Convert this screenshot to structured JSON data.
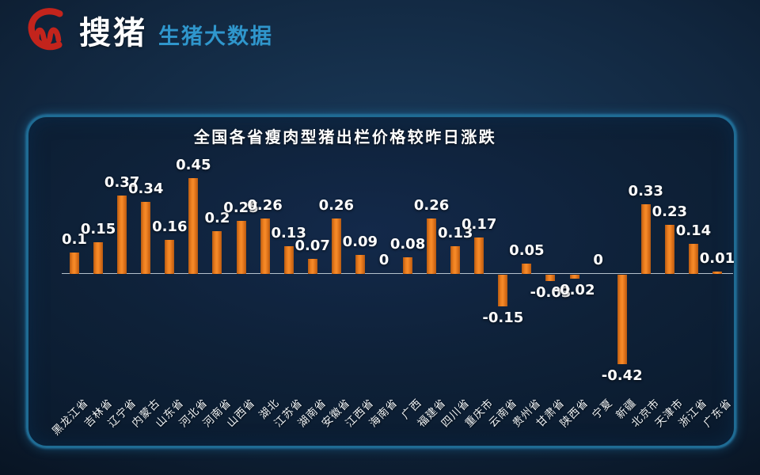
{
  "logo": {
    "brand": "搜猪",
    "subtitle": "生猪大数据",
    "icon": "pig-brush-icon",
    "brand_color": "#ffffff",
    "subtitle_color": "#2f96cc",
    "icon_color": "#c3241c"
  },
  "chart_data": {
    "type": "bar",
    "title": "全国各省瘦肉型猪出栏价格较昨日涨跌",
    "categories": [
      "黑龙江省",
      "吉林省",
      "辽宁省",
      "内蒙古",
      "山东省",
      "河北省",
      "河南省",
      "山西省",
      "湖北",
      "江苏省",
      "湖南省",
      "安徽省",
      "江西省",
      "海南省",
      "广西",
      "福建省",
      "四川省",
      "重庆市",
      "云南省",
      "贵州省",
      "甘肃省",
      "陕西省",
      "宁夏",
      "新疆",
      "北京市",
      "天津市",
      "浙江省",
      "广东省"
    ],
    "values": [
      0.1,
      0.15,
      0.37,
      0.34,
      0.16,
      0.45,
      0.2,
      0.25,
      0.26,
      0.13,
      0.07,
      0.26,
      0.09,
      0,
      0.08,
      0.26,
      0.13,
      0.17,
      -0.15,
      0.05,
      -0.03,
      -0.02,
      0,
      -0.42,
      0.33,
      0.23,
      0.14,
      0.01
    ],
    "xlabel": "",
    "ylabel": "",
    "ylim": [
      -0.5,
      0.5
    ],
    "grid": false,
    "legend": "none",
    "value_labels_shown": true,
    "bar_color": "#ee7d1e",
    "value_label_color": "#ffffff",
    "tick_label_color": "#eef3f7",
    "axis_line_color": "#c2ced8",
    "panel_border_color": "#1f6b93",
    "background_color": "#0c1f35"
  }
}
